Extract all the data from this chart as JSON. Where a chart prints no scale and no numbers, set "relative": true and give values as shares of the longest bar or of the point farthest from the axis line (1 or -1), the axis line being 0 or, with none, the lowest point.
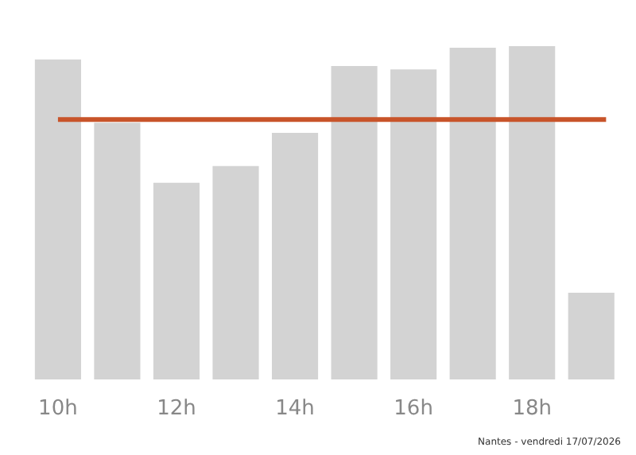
{
  "chart_data": {
    "type": "bar",
    "relative": true,
    "categories": [
      "10h",
      null,
      "12h",
      null,
      "14h",
      null,
      "16h",
      null,
      "18h",
      null
    ],
    "values": [
      0.96,
      0.77,
      0.59,
      0.64,
      0.74,
      0.94,
      0.93,
      0.995,
      1,
      0.26
    ],
    "color": "#d3d3d3",
    "ref_lines": [
      {
        "axis": "y",
        "value": 0.78,
        "color": "#c8542a"
      }
    ],
    "annotations": [
      "Nantes - vendredi 17/07/2026"
    ],
    "grid": false
  }
}
